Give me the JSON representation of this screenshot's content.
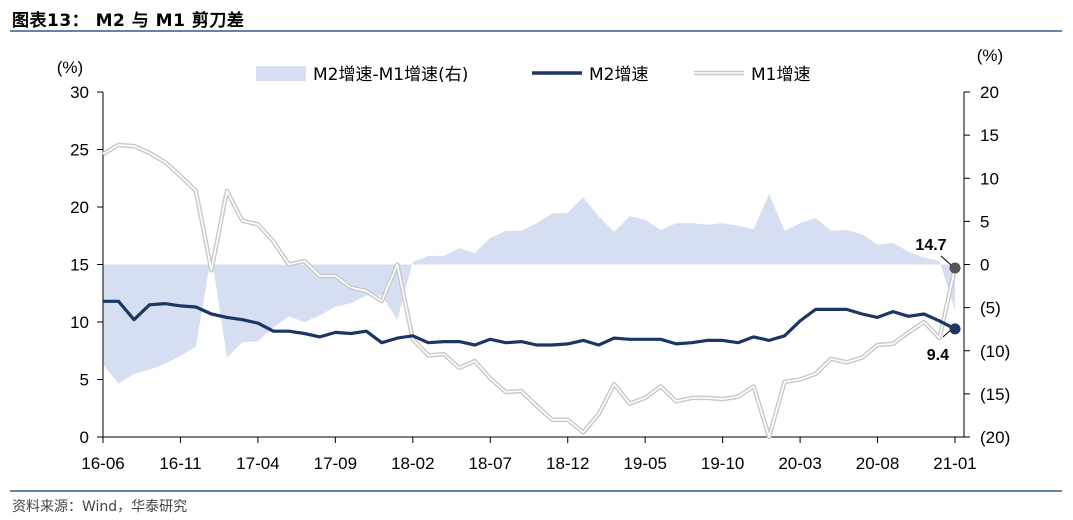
{
  "header": {
    "title": "图表13： M2 与 M1 剪刀差"
  },
  "footer": {
    "source": "资料来源：Wind，华泰研究"
  },
  "colors": {
    "rule": "#2e5b8a",
    "spread_fill": "#d6dff2",
    "m2_line": "#1b3564",
    "m1_line": "#c9c9c9",
    "end_m1": "#555555"
  },
  "chart_data": {
    "type": "line",
    "x": [
      "16-06",
      "16-07",
      "16-08",
      "16-09",
      "16-10",
      "16-11",
      "16-12",
      "17-01",
      "17-02",
      "17-03",
      "17-04",
      "17-05",
      "17-06",
      "17-07",
      "17-08",
      "17-09",
      "17-10",
      "17-11",
      "17-12",
      "18-01",
      "18-02",
      "18-03",
      "18-04",
      "18-05",
      "18-06",
      "18-07",
      "18-08",
      "18-09",
      "18-10",
      "18-11",
      "18-12",
      "19-01",
      "19-02",
      "19-03",
      "19-04",
      "19-05",
      "19-06",
      "19-07",
      "19-08",
      "19-09",
      "19-10",
      "19-11",
      "19-12",
      "20-01",
      "20-02",
      "20-03",
      "20-04",
      "20-05",
      "20-06",
      "20-07",
      "20-08",
      "20-09",
      "20-10",
      "20-11",
      "20-12",
      "21-01"
    ],
    "x_tick_labels": [
      "16-06",
      "16-11",
      "17-04",
      "17-09",
      "18-02",
      "18-07",
      "18-12",
      "19-05",
      "19-10",
      "20-03",
      "20-08",
      "21-01"
    ],
    "y_left": {
      "unit": "(%)",
      "min": 0,
      "max": 30,
      "ticks": [
        "0",
        "5",
        "10",
        "15",
        "20",
        "25",
        "30"
      ]
    },
    "y_right": {
      "unit": "(%)",
      "min": -20,
      "max": 20,
      "ticks": [
        "(20)",
        "(15)",
        "(10)",
        "(5)",
        "0",
        "5",
        "10",
        "15",
        "20"
      ]
    },
    "series": [
      {
        "name": "M2增速-M1增速(右)",
        "kind": "area",
        "axis": "right",
        "values": [
          -11.6,
          -13.8,
          -12.7,
          -12.2,
          -11.5,
          -10.6,
          -9.5,
          1.1,
          -10.8,
          -9.0,
          -8.9,
          -7.3,
          -6.0,
          -6.7,
          -5.9,
          -4.9,
          -4.5,
          -3.6,
          -3.6,
          -6.4,
          0.3,
          1.0,
          1.0,
          1.9,
          1.3,
          3.1,
          3.9,
          3.9,
          4.8,
          5.9,
          6.0,
          7.8,
          5.6,
          3.8,
          5.6,
          5.2,
          4.0,
          4.8,
          4.8,
          4.6,
          4.8,
          4.5,
          4.1,
          8.2,
          3.9,
          4.8,
          5.4,
          3.9,
          4.0,
          3.5,
          2.3,
          2.5,
          1.5,
          0.8,
          0.4,
          -5.3
        ]
      },
      {
        "name": "M2增速",
        "kind": "line",
        "axis": "left",
        "values": [
          11.8,
          11.8,
          10.2,
          11.5,
          11.6,
          11.4,
          11.3,
          10.7,
          10.4,
          10.2,
          9.9,
          9.2,
          9.2,
          9.0,
          8.7,
          9.1,
          9.0,
          9.2,
          8.2,
          8.6,
          8.8,
          8.2,
          8.3,
          8.3,
          8.0,
          8.5,
          8.2,
          8.3,
          8.0,
          8.0,
          8.1,
          8.4,
          8.0,
          8.6,
          8.5,
          8.5,
          8.5,
          8.1,
          8.2,
          8.4,
          8.4,
          8.2,
          8.7,
          8.4,
          8.8,
          10.1,
          11.1,
          11.1,
          11.1,
          10.7,
          10.4,
          10.9,
          10.5,
          10.7,
          10.1,
          9.4
        ]
      },
      {
        "name": "M1增速",
        "kind": "line",
        "axis": "left",
        "values": [
          24.6,
          25.4,
          25.3,
          24.7,
          23.9,
          22.7,
          21.4,
          14.5,
          21.4,
          18.8,
          18.5,
          17.0,
          15.0,
          15.3,
          14.0,
          14.0,
          13.0,
          12.7,
          11.8,
          15.0,
          8.5,
          7.1,
          7.2,
          6.0,
          6.6,
          5.1,
          3.9,
          4.0,
          2.7,
          1.5,
          1.5,
          0.4,
          2.0,
          4.6,
          2.9,
          3.4,
          4.4,
          3.1,
          3.4,
          3.4,
          3.3,
          3.5,
          4.4,
          0.0,
          4.8,
          5.0,
          5.5,
          6.8,
          6.5,
          6.9,
          8.0,
          8.1,
          9.1,
          10.0,
          8.6,
          14.7
        ]
      }
    ],
    "annotations": [
      {
        "text": "14.7",
        "series": "M1增速"
      },
      {
        "text": "9.4",
        "series": "M2增速"
      }
    ],
    "legend": {
      "position": "top-center"
    },
    "grid": false
  }
}
